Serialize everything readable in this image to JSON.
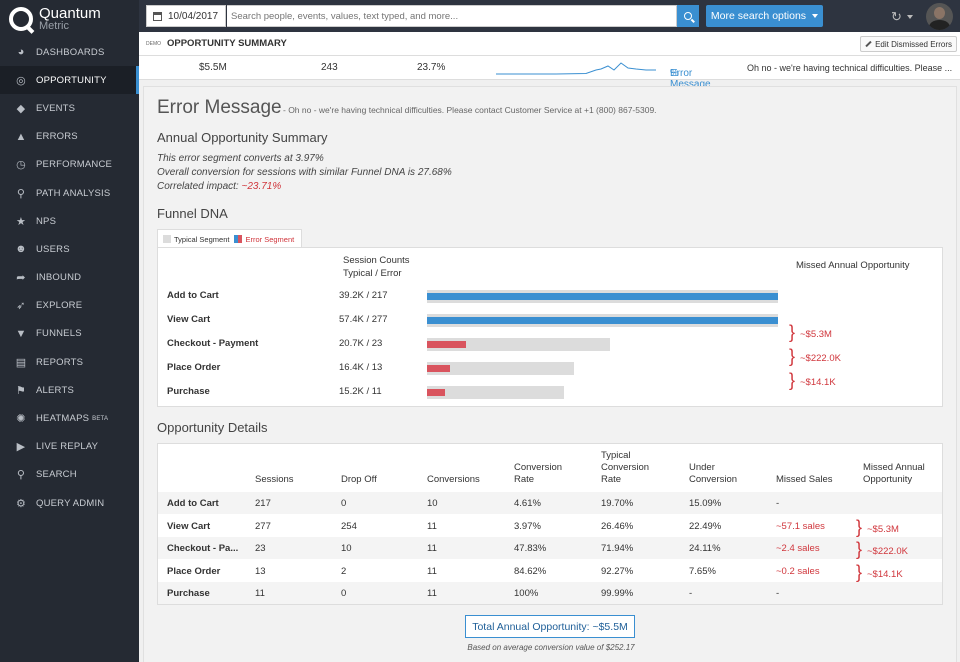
{
  "brand": {
    "name": "Quantum",
    "sub": "Metric"
  },
  "nav": [
    {
      "label": "DASHBOARDS",
      "icon": "pie-chart-icon",
      "glyph": "◕"
    },
    {
      "label": "OPPORTUNITY",
      "icon": "target-icon",
      "glyph": "◎"
    },
    {
      "label": "EVENTS",
      "icon": "tags-icon",
      "glyph": "◆"
    },
    {
      "label": "ERRORS",
      "icon": "warning-icon",
      "glyph": "▲"
    },
    {
      "label": "PERFORMANCE",
      "icon": "clock-icon",
      "glyph": "◷"
    },
    {
      "label": "PATH ANALYSIS",
      "icon": "walker-icon",
      "glyph": "⚲"
    },
    {
      "label": "NPS",
      "icon": "star-icon",
      "glyph": "★"
    },
    {
      "label": "USERS",
      "icon": "users-icon",
      "glyph": "☻"
    },
    {
      "label": "INBOUND",
      "icon": "share-arrow-icon",
      "glyph": "➦"
    },
    {
      "label": "EXPLORE",
      "icon": "rocket-icon",
      "glyph": "➶"
    },
    {
      "label": "FUNNELS",
      "icon": "filter-icon",
      "glyph": "▼"
    },
    {
      "label": "REPORTS",
      "icon": "file-icon",
      "glyph": "▤"
    },
    {
      "label": "ALERTS",
      "icon": "flag-icon",
      "glyph": "⚑"
    },
    {
      "label": "HEATMAPS",
      "badge": "BETA",
      "icon": "sun-icon",
      "glyph": "✺"
    },
    {
      "label": "LIVE REPLAY",
      "icon": "play-icon",
      "glyph": "▶"
    },
    {
      "label": "SEARCH",
      "icon": "search-icon",
      "glyph": "⚲"
    },
    {
      "label": "QUERY ADMIN",
      "icon": "cogs-icon",
      "glyph": "⚙"
    }
  ],
  "topbar": {
    "date": "10/04/2017",
    "search_placeholder": "Search people, events, values, text typed, and more...",
    "more_label": "More search options"
  },
  "segment": {
    "demo": "DEMO",
    "title": "OPPORTUNITY SUMMARY",
    "edit_label": "Edit Dismissed Errors"
  },
  "metrics": {
    "value": "$5.5M",
    "count": "243",
    "pct": "23.7%",
    "link": "Error Message",
    "message": "Oh no - we're having technical difficulties. Please ..."
  },
  "error": {
    "title": "Error Message",
    "subtitle": "- Oh no - we're having technical difficulties. Please contact Customer Service at +1 (800) 867-5309."
  },
  "summary": {
    "heading": "Annual Opportunity Summary",
    "line1": "This error segment converts at 3.97%",
    "line2": "Overall conversion for sessions with similar Funnel DNA is 27.68%",
    "line3_prefix": "Correlated impact: ",
    "line3_value": "~23.71%"
  },
  "funnel": {
    "heading": "Funnel DNA",
    "legend_typical": "Typical Segment",
    "legend_error": "Error Segment",
    "col_counts_1": "Session Counts",
    "col_counts_2": "Typical / Error",
    "col_missed": "Missed Annual Opportunity",
    "colors": {
      "typical": "#dcdcdc",
      "error": "#d9545e",
      "all": "#3a8fd1"
    },
    "steps": [
      {
        "label": "Add to Cart",
        "counts": "39.2K / 217",
        "typical": 1.0,
        "error": 1.0,
        "style": "all"
      },
      {
        "label": "View Cart",
        "counts": "57.4K / 277",
        "typical": 1.0,
        "error": 1.0,
        "style": "all"
      },
      {
        "label": "Checkout - Payment",
        "counts": "20.7K / 23",
        "typical": 0.52,
        "error": 0.11,
        "style": "error"
      },
      {
        "label": "Place Order",
        "counts": "16.4K / 13",
        "typical": 0.42,
        "error": 0.065,
        "style": "error"
      },
      {
        "label": "Purchase",
        "counts": "15.2K / 11",
        "typical": 0.39,
        "error": 0.05,
        "style": "error"
      }
    ],
    "missed": [
      "~$5.3M",
      "~$222.0K",
      "~$14.1K"
    ]
  },
  "details": {
    "heading": "Opportunity Details",
    "headers": [
      "Sessions",
      "Drop Off",
      "Conversions",
      "Conversion\nRate",
      "Typical\nConversion\nRate",
      "Under\nConversion",
      "Missed Sales",
      "Missed Annual\nOpportunity"
    ],
    "rows": [
      [
        "Add to Cart",
        "217",
        "0",
        "10",
        "4.61%",
        "19.70%",
        "15.09%",
        "-"
      ],
      [
        "View Cart",
        "277",
        "254",
        "11",
        "3.97%",
        "26.46%",
        "22.49%",
        "~57.1 sales"
      ],
      [
        "Checkout - Pa...",
        "23",
        "10",
        "11",
        "47.83%",
        "71.94%",
        "24.11%",
        "~2.4 sales"
      ],
      [
        "Place Order",
        "13",
        "2",
        "11",
        "84.62%",
        "92.27%",
        "7.65%",
        "~0.2 sales"
      ],
      [
        "Purchase",
        "11",
        "0",
        "11",
        "100%",
        "99.99%",
        "-",
        "-"
      ]
    ],
    "missed": [
      "~$5.3M",
      "~$222.0K",
      "~$14.1K"
    ]
  },
  "total": {
    "label": "Total Annual Opportunity: ~$5.5M",
    "note": "Based on average conversion value of $252.17"
  }
}
